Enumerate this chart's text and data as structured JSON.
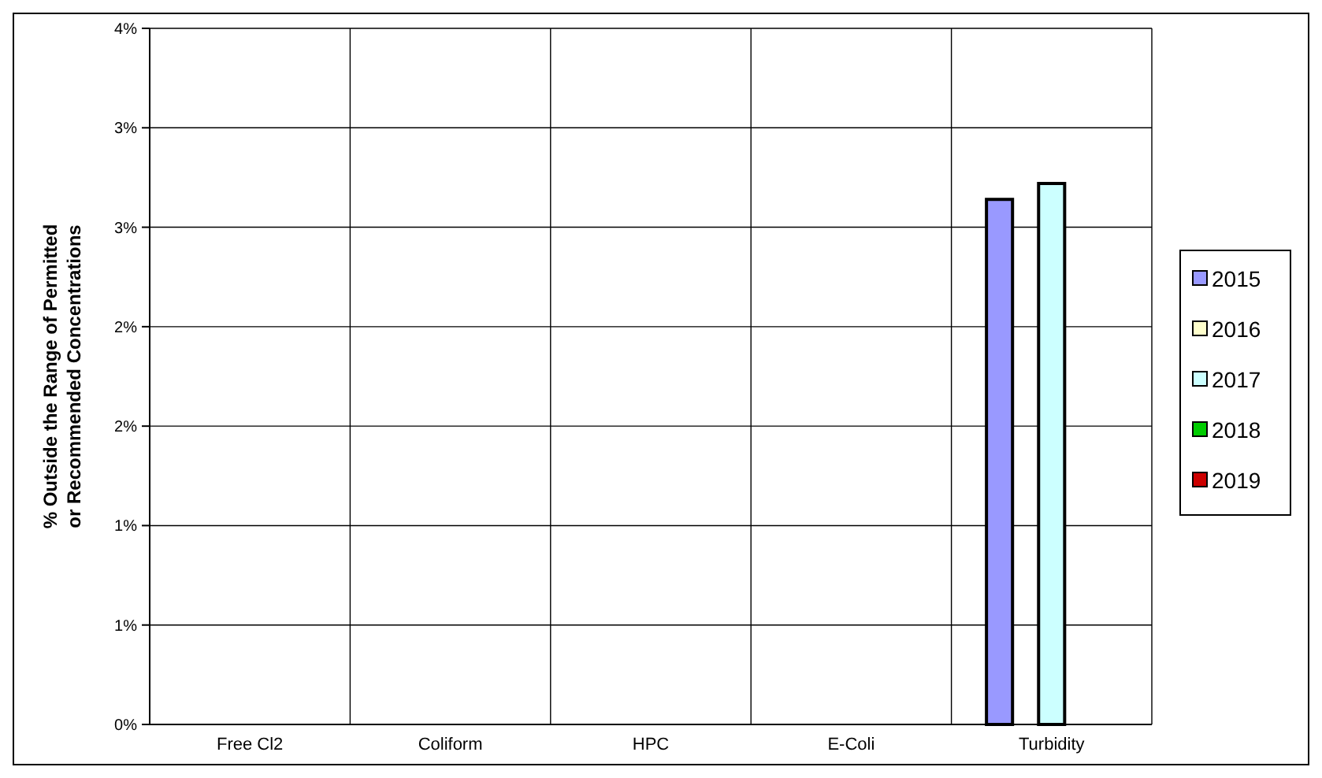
{
  "chart_data": {
    "type": "bar",
    "ylabel": "% Outside the Range of Permitted or Recommended Concentrations",
    "categories": [
      "Free Cl2",
      "Coliform",
      "HPC",
      "E-Coli",
      "Turbidity"
    ],
    "series": [
      {
        "name": "2015",
        "color": "#9999ff",
        "values": [
          0,
          0,
          0,
          0,
          2.64
        ]
      },
      {
        "name": "2016",
        "color": "#ffffcc",
        "values": [
          0,
          0,
          0,
          0,
          0
        ]
      },
      {
        "name": "2017",
        "color": "#ccffff",
        "values": [
          0,
          0,
          0,
          0,
          2.72
        ]
      },
      {
        "name": "2018",
        "color": "#00cc00",
        "values": [
          0,
          0,
          0,
          0,
          0
        ]
      },
      {
        "name": "2019",
        "color": "#cc0000",
        "values": [
          0,
          0,
          0,
          0,
          0
        ]
      }
    ],
    "ylim": [
      0,
      3.5
    ],
    "yticks": [
      {
        "value": 0,
        "label": "0%"
      },
      {
        "value": 0.5,
        "label": "1%"
      },
      {
        "value": 1,
        "label": "1%"
      },
      {
        "value": 1.5,
        "label": "2%"
      },
      {
        "value": 2,
        "label": "2%"
      },
      {
        "value": 2.5,
        "label": "3%"
      },
      {
        "value": 3,
        "label": "3%"
      },
      {
        "value": 3.5,
        "label": "4%"
      }
    ],
    "grid": true,
    "legend": "right"
  }
}
